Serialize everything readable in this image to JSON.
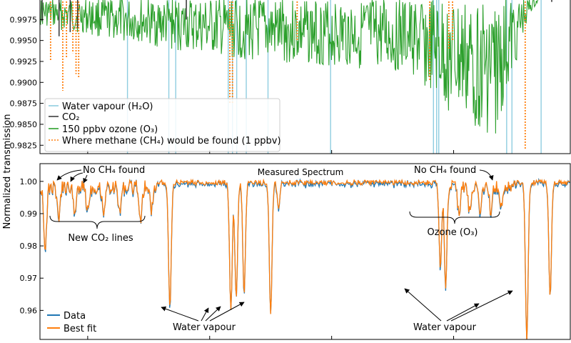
{
  "figure": {
    "ylabel": "Normalized transmission"
  },
  "chart_data": [
    {
      "type": "line",
      "panel": "top",
      "ylim": [
        0.9815,
        1.0
      ],
      "xlim": [
        0,
        100
      ],
      "yticks": [
        0.9825,
        0.985,
        0.9875,
        0.99,
        0.9925,
        0.995,
        0.9975
      ],
      "ytick_labels": [
        "0.9825",
        "0.9850",
        "0.9875",
        "0.9900",
        "0.9925",
        "0.9950",
        "0.9975"
      ],
      "legend_position": "lower-left",
      "series": [
        {
          "name": "Water vapour (H₂O)",
          "color": "#8fcde0",
          "style": "solid",
          "baseline": 1.0,
          "lines": [
            [
              16.5,
              0.975
            ],
            [
              24.3,
              0.975
            ],
            [
              25.6,
              0.975
            ],
            [
              35.5,
              0.975
            ],
            [
              36.3,
              0.975
            ],
            [
              37.1,
              0.975
            ],
            [
              38.9,
              0.975
            ],
            [
              43.0,
              0.975
            ],
            [
              54.8,
              0.975
            ],
            [
              74.2,
              0.975
            ],
            [
              74.8,
              0.975
            ],
            [
              75.2,
              0.975
            ],
            [
              88.0,
              0.975
            ],
            [
              89.0,
              0.975
            ],
            [
              94.5,
              0.975
            ]
          ]
        },
        {
          "name": "CO₂",
          "color": "#3f3f3f",
          "style": "solid",
          "baseline": 0.9995,
          "lines": [
            [
              0.4,
              0.9973
            ],
            [
              3.6,
              0.9955
            ],
            [
              5.7,
              0.996
            ],
            [
              7.1,
              0.9965
            ],
            [
              27.6,
              0.9975
            ],
            [
              96.5,
              0.9996
            ]
          ]
        },
        {
          "name": "150 ppbv ozone (O₃)",
          "color": "#2ca02c",
          "style": "solid",
          "segments": [
            [
              0.0,
              0.9985
            ],
            [
              33.0,
              0.9968
            ],
            [
              39.0,
              0.9966
            ],
            [
              60.0,
              0.9962
            ],
            [
              70.0,
              0.9958
            ],
            [
              78.0,
              0.9935
            ],
            [
              86.0,
              0.9925
            ],
            [
              89.0,
              0.9955
            ],
            [
              92.0,
              0.999
            ],
            [
              94.0,
              0.9998
            ]
          ]
        },
        {
          "name": "Where methane (CH₄) would be found (1 ppbv)",
          "color": "#ff7f0e",
          "style": "dotted",
          "baseline": 1.0,
          "lines": [
            [
              2.0,
              0.9925
            ],
            [
              4.3,
              0.989
            ],
            [
              5.0,
              0.993
            ],
            [
              6.2,
              0.9935
            ],
            [
              6.8,
              0.991
            ],
            [
              7.3,
              0.9905
            ],
            [
              35.8,
              0.9875
            ],
            [
              36.3,
              0.9875
            ],
            [
              48.5,
              0.995
            ],
            [
              73.5,
              0.9903
            ],
            [
              77.1,
              0.994
            ],
            [
              77.8,
              0.995
            ],
            [
              91.5,
              0.982
            ]
          ]
        }
      ]
    },
    {
      "type": "line",
      "panel": "bottom",
      "title": "Measured Spectrum",
      "ylim": [
        0.951,
        1.0055
      ],
      "xlim": [
        0,
        100
      ],
      "yticks": [
        0.96,
        0.97,
        0.98,
        0.99,
        1.0
      ],
      "ytick_labels": [
        "0.96",
        "0.97",
        "0.98",
        "0.99",
        "1.00"
      ],
      "legend_position": "lower-left",
      "series": [
        {
          "name": "Data",
          "color": "#1f77b4"
        },
        {
          "name": "Best fit",
          "color": "#ff7f0e"
        }
      ],
      "features": [
        {
          "x": 1.0,
          "y": 0.9795
        },
        {
          "x": 3.5,
          "y": 0.99
        },
        {
          "x": 6.5,
          "y": 0.992
        },
        {
          "x": 9.0,
          "y": 0.993
        },
        {
          "x": 12.0,
          "y": 0.9925
        },
        {
          "x": 15.0,
          "y": 0.992
        },
        {
          "x": 19.0,
          "y": 0.99
        },
        {
          "x": 21.0,
          "y": 0.993
        },
        {
          "x": 24.5,
          "y": 0.9615
        },
        {
          "x": 36.0,
          "y": 0.96
        },
        {
          "x": 37.0,
          "y": 0.964
        },
        {
          "x": 38.5,
          "y": 0.966
        },
        {
          "x": 43.5,
          "y": 0.9585
        },
        {
          "x": 45.0,
          "y": 0.992
        },
        {
          "x": 75.5,
          "y": 0.973
        },
        {
          "x": 76.5,
          "y": 0.968
        },
        {
          "x": 79.0,
          "y": 0.992
        },
        {
          "x": 81.0,
          "y": 0.992
        },
        {
          "x": 83.0,
          "y": 0.9915
        },
        {
          "x": 85.0,
          "y": 0.9925
        },
        {
          "x": 87.0,
          "y": 0.993
        },
        {
          "x": 91.8,
          "y": 0.951
        },
        {
          "x": 96.2,
          "y": 0.9645
        }
      ],
      "annotations": [
        {
          "text": "No CH₄ found",
          "role": "note-left"
        },
        {
          "text": "No CH₄ found",
          "role": "note-right"
        },
        {
          "text": "New CO₂ lines",
          "role": "brace-left"
        },
        {
          "text": "Ozone (O₃)",
          "role": "brace-right"
        },
        {
          "text": "Water vapour",
          "role": "arrow-left"
        },
        {
          "text": "Water vapour",
          "role": "arrow-right"
        }
      ]
    }
  ]
}
